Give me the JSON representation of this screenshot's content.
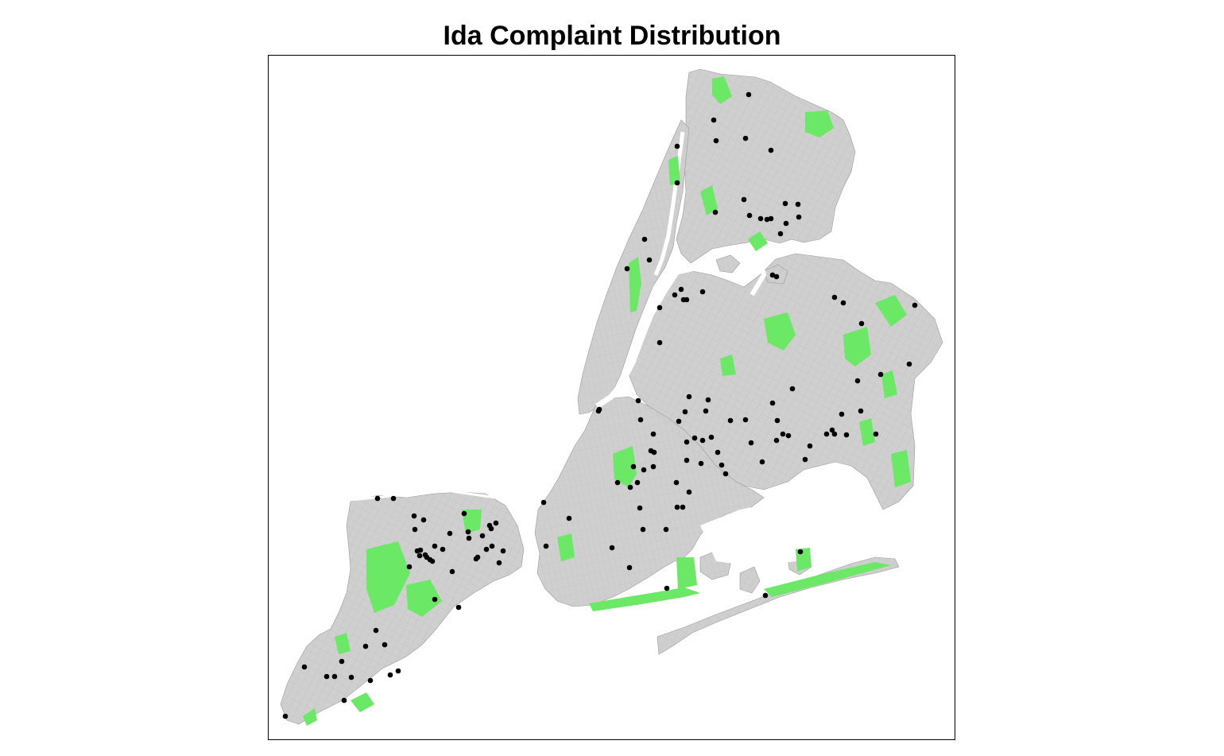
{
  "title": "Ida Complaint Distribution",
  "colors": {
    "land": "#cfcfcf",
    "street_lines": "#b2b2b2",
    "parks": "#6be865",
    "complaint_points": "#000000",
    "frame": "#000000",
    "background": "#ffffff"
  },
  "layers": [
    "borough-landmass",
    "street-grid",
    "parks",
    "complaint-points"
  ],
  "complaint_points_count": 143
}
